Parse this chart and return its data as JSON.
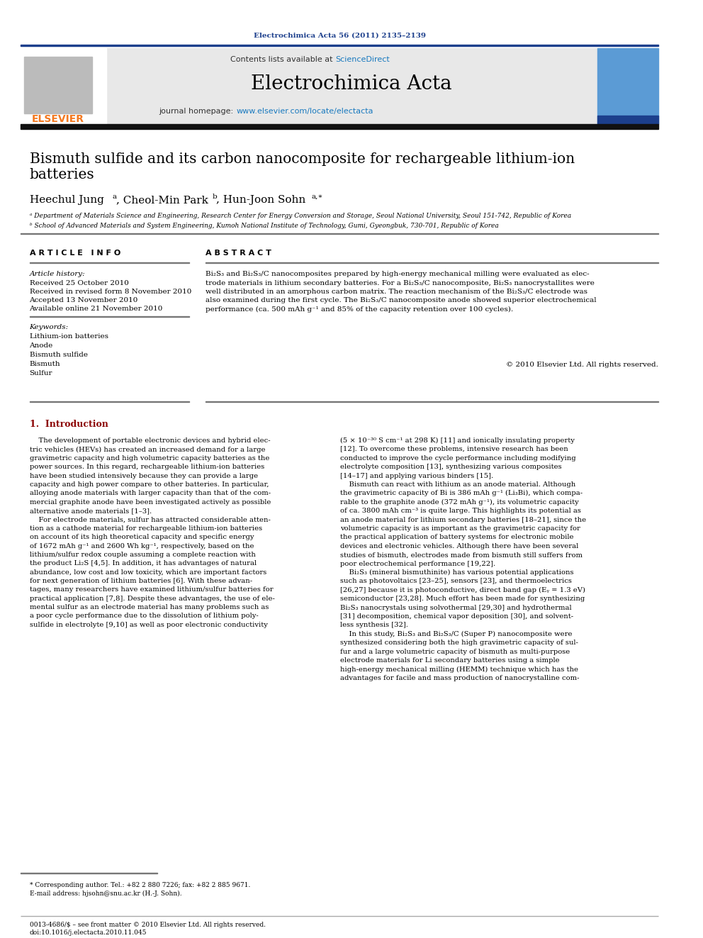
{
  "journal_ref": "Electrochimica Acta 56 (2011) 2135–2139",
  "journal_name": "Electrochimica Acta",
  "contents_text": "Contents lists available at ScienceDirect",
  "journal_homepage": "journal homepage: www.elsevier.com/locate/electacta",
  "sciencedirect_color": "#1a7abf",
  "title_line1": "Bismuth sulfide and its carbon nanocomposite for rechargeable lithium-ion",
  "title_line2": "batteries",
  "affil_a": "ᵃ Department of Materials Science and Engineering, Research Center for Energy Conversion and Storage, Seoul National University, Seoul 151-742, Republic of Korea",
  "affil_b": "ᵇ School of Advanced Materials and System Engineering, Kumoh National Institute of Technology, Gumi, Gyeongbuk, 730-701, Republic of Korea",
  "article_info_header": "A R T I C L E   I N F O",
  "abstract_header": "A B S T R A C T",
  "article_history_label": "Article history:",
  "received": "Received 25 October 2010",
  "received_revised": "Received in revised form 8 November 2010",
  "accepted": "Accepted 13 November 2010",
  "available": "Available online 21 November 2010",
  "keywords_label": "Keywords:",
  "keywords": [
    "Lithium-ion batteries",
    "Anode",
    "Bismuth sulfide",
    "Bismuth",
    "Sulfur"
  ],
  "copyright": "© 2010 Elsevier Ltd. All rights reserved.",
  "intro_header": "1.  Introduction",
  "footnote_star": "* Corresponding author. Tel.: +82 2 880 7226; fax: +82 2 885 9671.",
  "footnote_email": "E-mail address: hjsohn@snu.ac.kr (H.-J. Sohn).",
  "footer_issn": "0013-4686/$ – see front matter © 2010 Elsevier Ltd. All rights reserved.",
  "footer_doi": "doi:10.1016/j.electacta.2010.11.045",
  "bg_color": "#ffffff",
  "header_bg": "#e8e8e8",
  "header_bar_color": "#1c3f8c",
  "elsevier_orange": "#f47920",
  "intro_color": "#8B0000"
}
